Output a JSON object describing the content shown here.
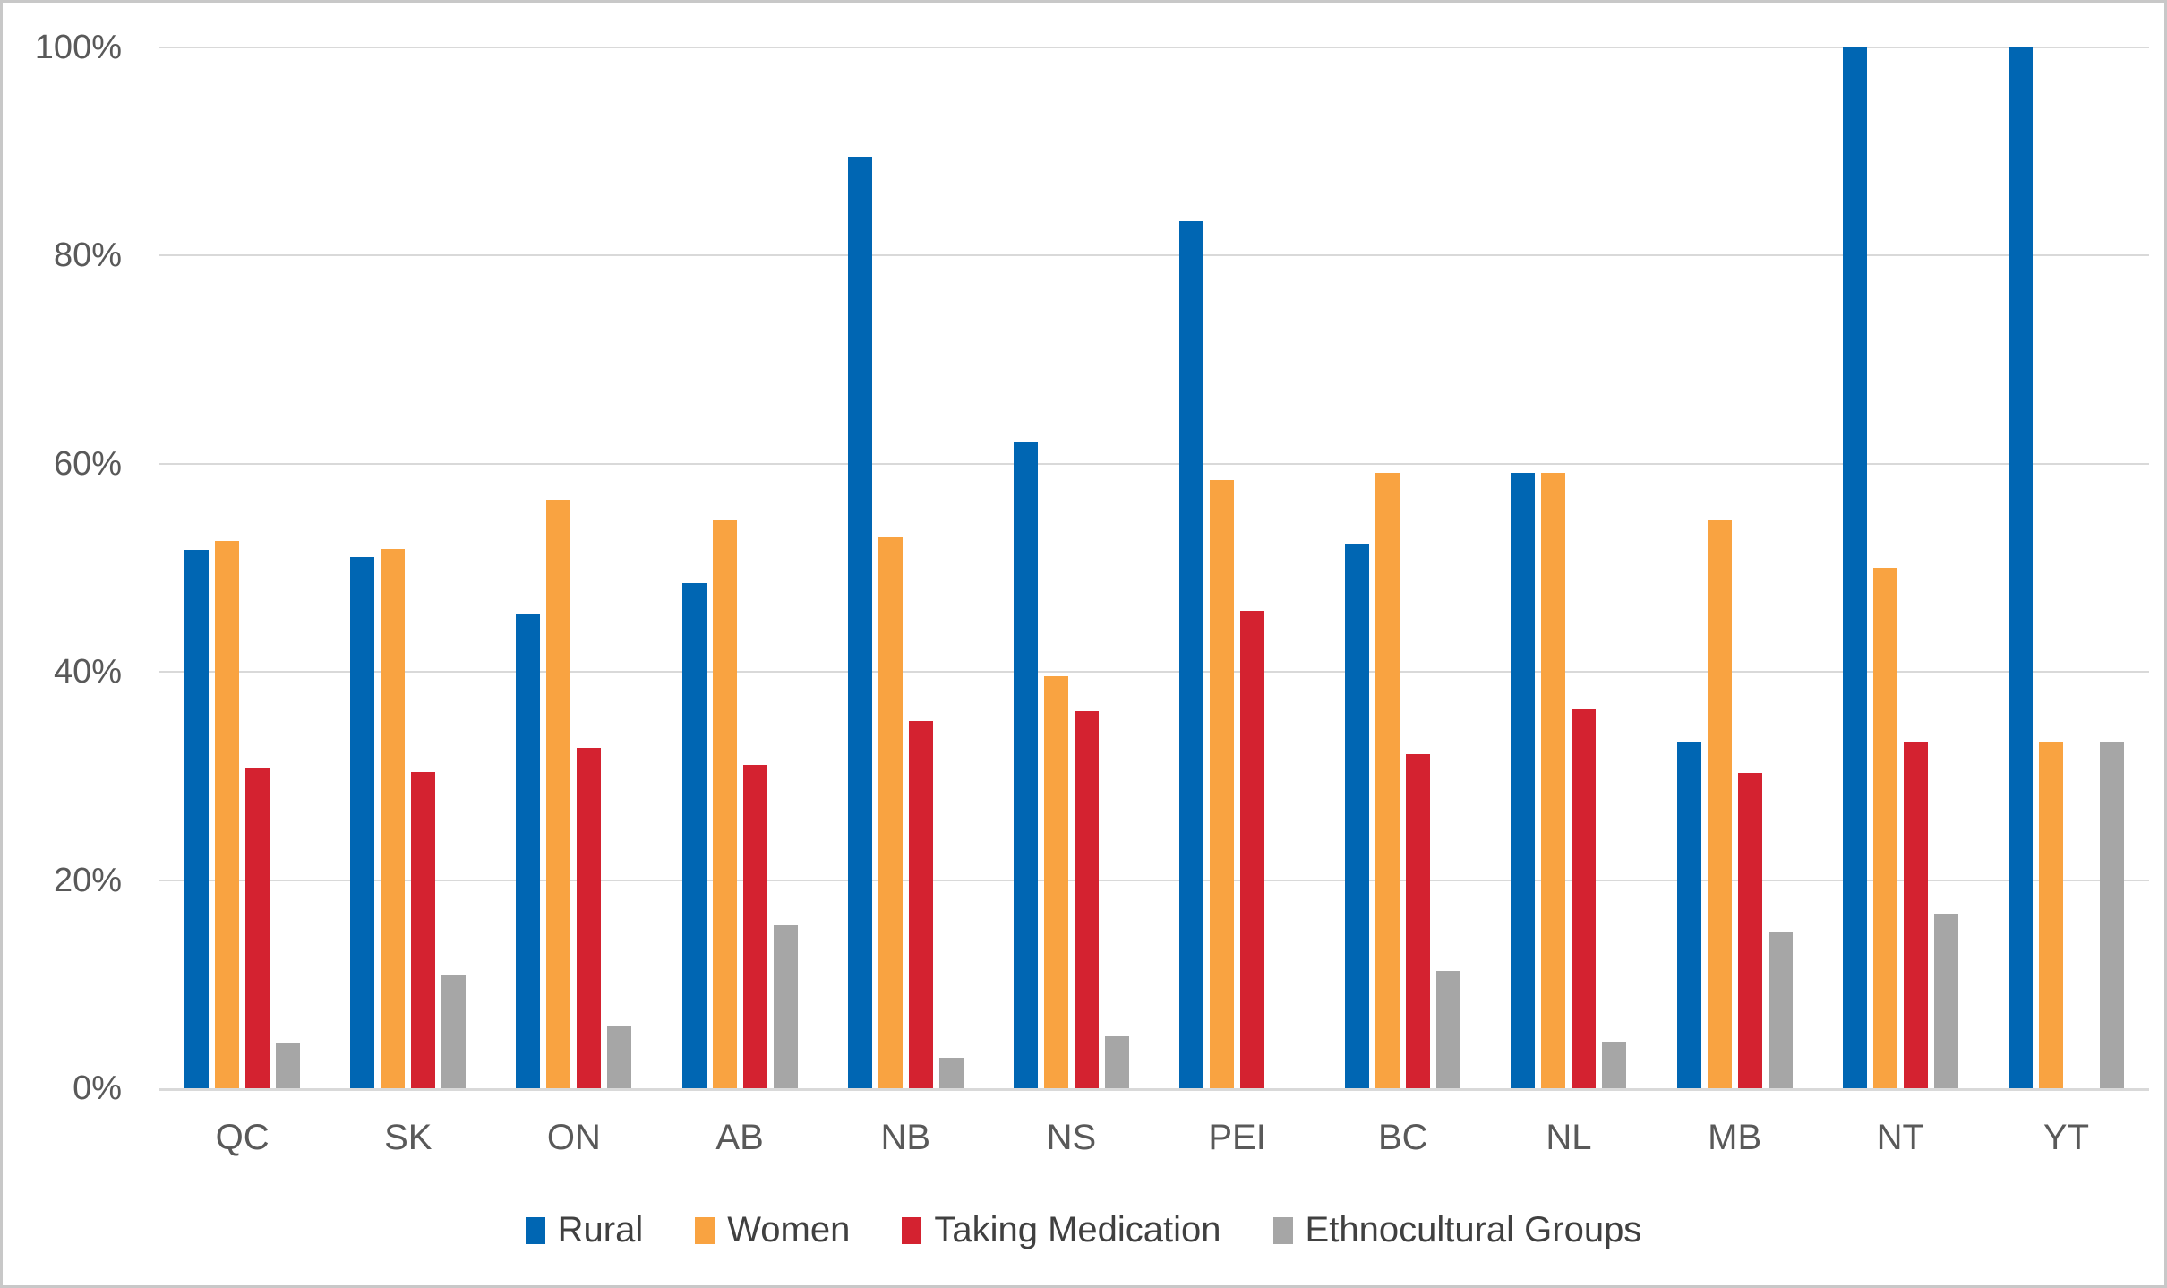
{
  "chart_data": {
    "type": "bar",
    "title": "",
    "xlabel": "",
    "ylabel": "",
    "categories": [
      "QC",
      "SK",
      "ON",
      "AB",
      "NB",
      "NS",
      "PEI",
      "BC",
      "NL",
      "MB",
      "NT",
      "YT"
    ],
    "series": [
      {
        "name": "Rural",
        "color": "#0066b3",
        "values": [
          51.7,
          51.0,
          45.6,
          48.5,
          89.5,
          62.1,
          83.3,
          52.3,
          59.1,
          33.3,
          100.0,
          100.0
        ]
      },
      {
        "name": "Women",
        "color": "#f9a341",
        "values": [
          52.6,
          51.8,
          56.5,
          54.6,
          52.9,
          39.6,
          58.4,
          59.1,
          59.1,
          54.6,
          50.0,
          33.3
        ]
      },
      {
        "name": "Taking Medication",
        "color": "#d42230",
        "values": [
          30.8,
          30.4,
          32.7,
          31.1,
          35.3,
          36.2,
          45.9,
          32.1,
          36.4,
          30.3,
          33.3,
          0.0
        ]
      },
      {
        "name": "Ethnocultural Groups",
        "color": "#a6a6a6",
        "values": [
          4.3,
          10.9,
          6.0,
          15.7,
          2.9,
          5.0,
          0.0,
          11.3,
          4.5,
          15.1,
          16.7,
          33.3
        ]
      }
    ],
    "y_ticks": [
      "100%",
      "80%",
      "60%",
      "40%",
      "20%",
      "0%"
    ],
    "ylim": [
      0,
      100
    ],
    "grid": true,
    "legend_position": "bottom"
  },
  "colors": {
    "gridline": "#d9d9d9",
    "axis_text": "#595959",
    "legend_text": "#404040",
    "frame_border": "#c8c8c8",
    "background": "#ffffff"
  }
}
